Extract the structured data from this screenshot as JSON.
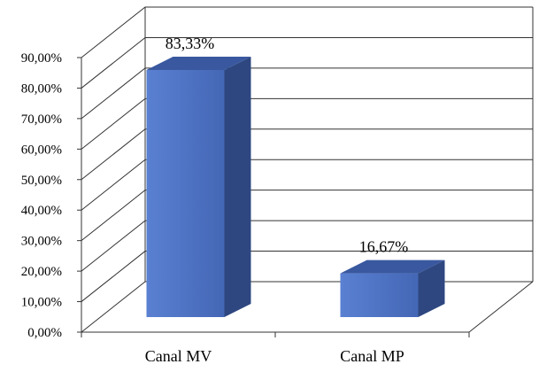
{
  "chart_data": {
    "type": "bar",
    "style": "3d-column",
    "categories": [
      "Canal MV",
      "Canal MP"
    ],
    "values": [
      83.33,
      16.67
    ],
    "data_labels": [
      "83,33%",
      "16,67%"
    ],
    "ylim": [
      0,
      90
    ],
    "yticks": [
      0,
      10,
      20,
      30,
      40,
      50,
      60,
      70,
      80,
      90
    ],
    "ytick_labels": [
      "0,00%",
      "10,00%",
      "20,00%",
      "30,00%",
      "40,00%",
      "50,00%",
      "60,00%",
      "70,00%",
      "80,00%",
      "90,00%"
    ],
    "grid": true,
    "legend": "none",
    "colors": {
      "bar_front": "#4f74c6",
      "bar_side": "#2e4780",
      "bar_top": "#39589f",
      "grid": "#333333"
    }
  }
}
